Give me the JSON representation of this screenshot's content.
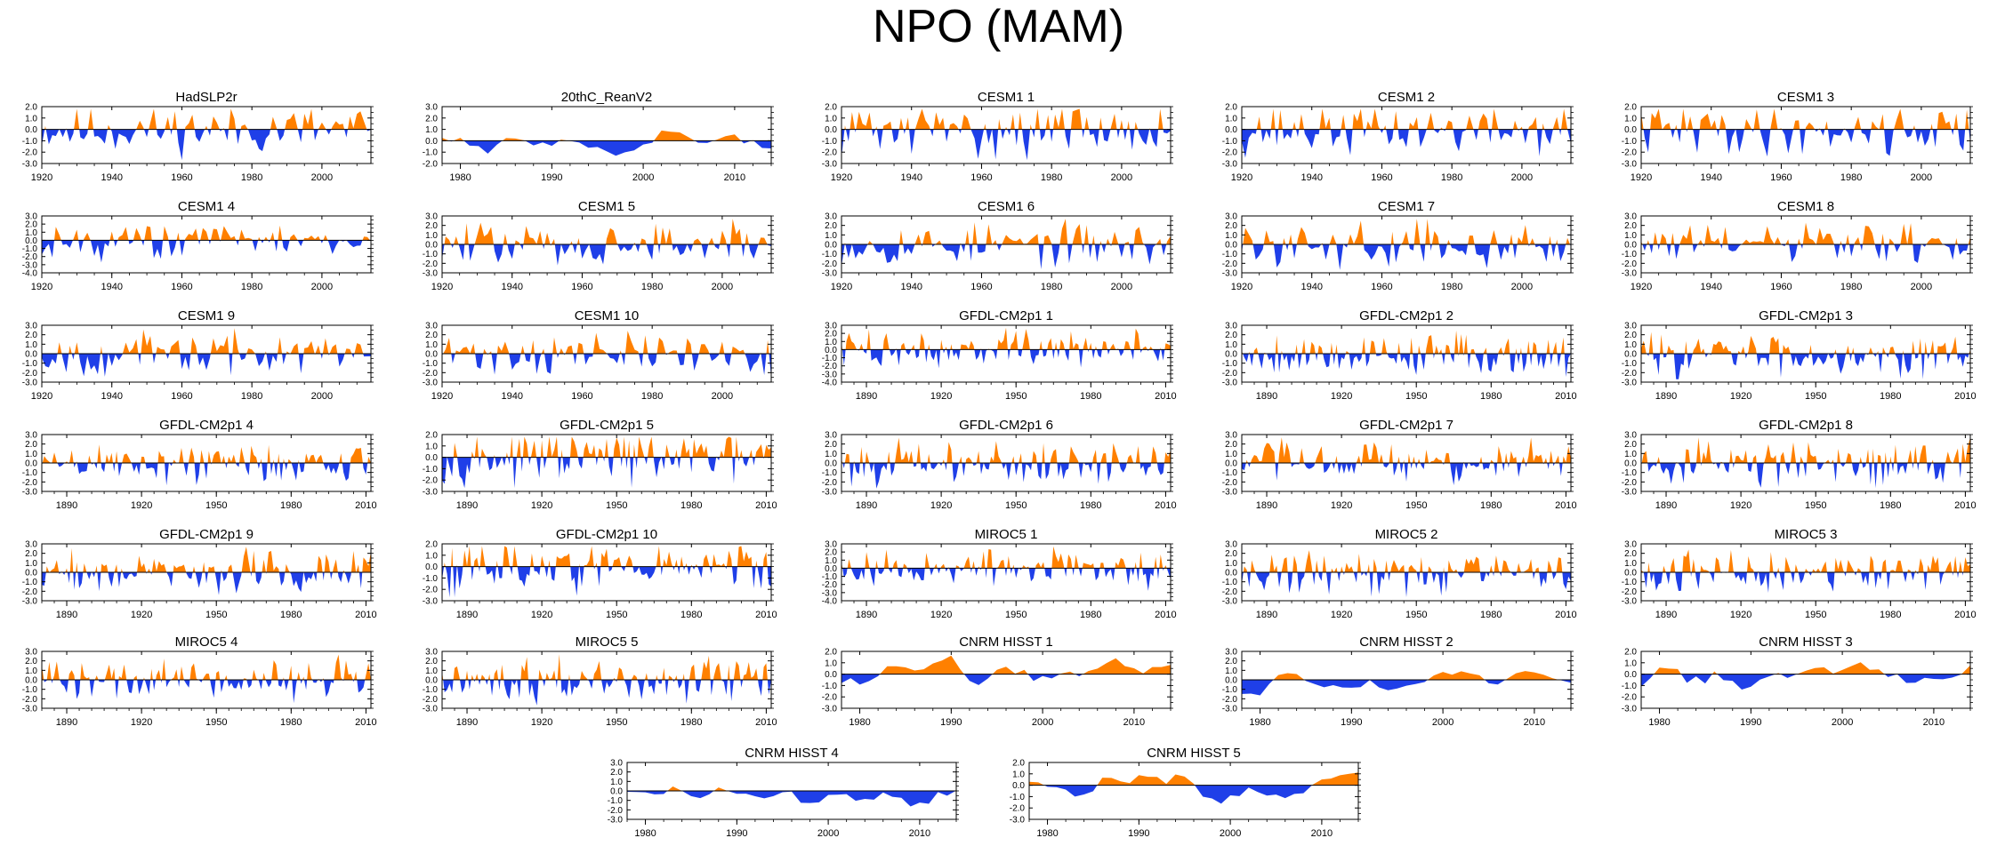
{
  "title": "NPO (MAM)",
  "colors": {
    "positive": "#ff8000",
    "negative": "#1f3fe8",
    "axis": "#000000",
    "zero": "#000000"
  },
  "chart_data": [
    {
      "type": "area",
      "title": "HadSLP2r",
      "xlim": [
        1920,
        2014
      ],
      "ylim": [
        -3,
        2
      ],
      "xticks": [
        1920,
        1940,
        1960,
        1980,
        2000
      ],
      "yticks": [
        -3,
        -2,
        -1,
        0,
        1,
        2
      ],
      "seed": 11,
      "smooth": 1
    },
    {
      "type": "area",
      "title": "20thC_ReanV2",
      "xlim": [
        1978,
        2014
      ],
      "ylim": [
        -2,
        3
      ],
      "xticks": [
        1980,
        1990,
        2000,
        2010
      ],
      "yticks": [
        -2,
        -1,
        0,
        1,
        2,
        3
      ],
      "seed": 23,
      "smooth": 3
    },
    {
      "type": "area",
      "title": "CESM1 1",
      "xlim": [
        1920,
        2014
      ],
      "ylim": [
        -3,
        2
      ],
      "xticks": [
        1920,
        1940,
        1960,
        1980,
        2000
      ],
      "yticks": [
        -3,
        -2,
        -1,
        0,
        1,
        2
      ],
      "seed": 31,
      "smooth": 1
    },
    {
      "type": "area",
      "title": "CESM1 2",
      "xlim": [
        1920,
        2014
      ],
      "ylim": [
        -3,
        2
      ],
      "xticks": [
        1920,
        1940,
        1960,
        1980,
        2000
      ],
      "yticks": [
        -3,
        -2,
        -1,
        0,
        1,
        2
      ],
      "seed": 37,
      "smooth": 1
    },
    {
      "type": "area",
      "title": "CESM1 3",
      "xlim": [
        1920,
        2014
      ],
      "ylim": [
        -3,
        2
      ],
      "xticks": [
        1920,
        1940,
        1960,
        1980,
        2000
      ],
      "yticks": [
        -3,
        -2,
        -1,
        0,
        1,
        2
      ],
      "seed": 41,
      "smooth": 1
    },
    {
      "type": "area",
      "title": "CESM1 4",
      "xlim": [
        1920,
        2014
      ],
      "ylim": [
        -4,
        3
      ],
      "xticks": [
        1920,
        1940,
        1960,
        1980,
        2000
      ],
      "yticks": [
        -4,
        -3,
        -2,
        -1,
        0,
        1,
        2,
        3
      ],
      "seed": 43,
      "smooth": 1
    },
    {
      "type": "area",
      "title": "CESM1 5",
      "xlim": [
        1920,
        2014
      ],
      "ylim": [
        -3,
        3
      ],
      "xticks": [
        1920,
        1940,
        1960,
        1980,
        2000
      ],
      "yticks": [
        -3,
        -2,
        -1,
        0,
        1,
        2,
        3
      ],
      "seed": 47,
      "smooth": 1
    },
    {
      "type": "area",
      "title": "CESM1 6",
      "xlim": [
        1920,
        2014
      ],
      "ylim": [
        -3,
        3
      ],
      "xticks": [
        1920,
        1940,
        1960,
        1980,
        2000
      ],
      "yticks": [
        -3,
        -2,
        -1,
        0,
        1,
        2,
        3
      ],
      "seed": 53,
      "smooth": 1
    },
    {
      "type": "area",
      "title": "CESM1 7",
      "xlim": [
        1920,
        2014
      ],
      "ylim": [
        -3,
        3
      ],
      "xticks": [
        1920,
        1940,
        1960,
        1980,
        2000
      ],
      "yticks": [
        -3,
        -2,
        -1,
        0,
        1,
        2,
        3
      ],
      "seed": 59,
      "smooth": 1
    },
    {
      "type": "area",
      "title": "CESM1 8",
      "xlim": [
        1920,
        2014
      ],
      "ylim": [
        -3,
        3
      ],
      "xticks": [
        1920,
        1940,
        1960,
        1980,
        2000
      ],
      "yticks": [
        -3,
        -2,
        -1,
        0,
        1,
        2,
        3
      ],
      "seed": 61,
      "smooth": 1
    },
    {
      "type": "area",
      "title": "CESM1 9",
      "xlim": [
        1920,
        2014
      ],
      "ylim": [
        -3,
        3
      ],
      "xticks": [
        1920,
        1940,
        1960,
        1980,
        2000
      ],
      "yticks": [
        -3,
        -2,
        -1,
        0,
        1,
        2,
        3
      ],
      "seed": 67,
      "smooth": 1
    },
    {
      "type": "area",
      "title": "CESM1 10",
      "xlim": [
        1920,
        2014
      ],
      "ylim": [
        -3,
        3
      ],
      "xticks": [
        1920,
        1940,
        1960,
        1980,
        2000
      ],
      "yticks": [
        -3,
        -2,
        -1,
        0,
        1,
        2,
        3
      ],
      "seed": 71,
      "smooth": 1
    },
    {
      "type": "area",
      "title": "GFDL-CM2p1 1",
      "xlim": [
        1880,
        2012
      ],
      "ylim": [
        -4,
        3
      ],
      "xticks": [
        1890,
        1920,
        1950,
        1980,
        2010
      ],
      "yticks": [
        -4,
        -3,
        -2,
        -1,
        0,
        1,
        2,
        3
      ],
      "seed": 73,
      "smooth": 1
    },
    {
      "type": "area",
      "title": "GFDL-CM2p1 2",
      "xlim": [
        1880,
        2012
      ],
      "ylim": [
        -3,
        3
      ],
      "xticks": [
        1890,
        1920,
        1950,
        1980,
        2010
      ],
      "yticks": [
        -3,
        -2,
        -1,
        0,
        1,
        2,
        3
      ],
      "seed": 79,
      "smooth": 1
    },
    {
      "type": "area",
      "title": "GFDL-CM2p1 3",
      "xlim": [
        1880,
        2012
      ],
      "ylim": [
        -3,
        3
      ],
      "xticks": [
        1890,
        1920,
        1950,
        1980,
        2010
      ],
      "yticks": [
        -3,
        -2,
        -1,
        0,
        1,
        2,
        3
      ],
      "seed": 83,
      "smooth": 1
    },
    {
      "type": "area",
      "title": "GFDL-CM2p1 4",
      "xlim": [
        1880,
        2012
      ],
      "ylim": [
        -3,
        3
      ],
      "xticks": [
        1890,
        1920,
        1950,
        1980,
        2010
      ],
      "yticks": [
        -3,
        -2,
        -1,
        0,
        1,
        2,
        3
      ],
      "seed": 89,
      "smooth": 1
    },
    {
      "type": "area",
      "title": "GFDL-CM2p1 5",
      "xlim": [
        1880,
        2012
      ],
      "ylim": [
        -3,
        2
      ],
      "xticks": [
        1890,
        1920,
        1950,
        1980,
        2010
      ],
      "yticks": [
        -3,
        -2,
        -1,
        0,
        1,
        2
      ],
      "seed": 97,
      "smooth": 1
    },
    {
      "type": "area",
      "title": "GFDL-CM2p1 6",
      "xlim": [
        1880,
        2012
      ],
      "ylim": [
        -3,
        3
      ],
      "xticks": [
        1890,
        1920,
        1950,
        1980,
        2010
      ],
      "yticks": [
        -3,
        -2,
        -1,
        0,
        1,
        2,
        3
      ],
      "seed": 101,
      "smooth": 1
    },
    {
      "type": "area",
      "title": "GFDL-CM2p1 7",
      "xlim": [
        1880,
        2012
      ],
      "ylim": [
        -3,
        3
      ],
      "xticks": [
        1890,
        1920,
        1950,
        1980,
        2010
      ],
      "yticks": [
        -3,
        -2,
        -1,
        0,
        1,
        2,
        3
      ],
      "seed": 103,
      "smooth": 1
    },
    {
      "type": "area",
      "title": "GFDL-CM2p1 8",
      "xlim": [
        1880,
        2012
      ],
      "ylim": [
        -3,
        3
      ],
      "xticks": [
        1890,
        1920,
        1950,
        1980,
        2010
      ],
      "yticks": [
        -3,
        -2,
        -1,
        0,
        1,
        2,
        3
      ],
      "seed": 107,
      "smooth": 1
    },
    {
      "type": "area",
      "title": "GFDL-CM2p1 9",
      "xlim": [
        1880,
        2012
      ],
      "ylim": [
        -3,
        3
      ],
      "xticks": [
        1890,
        1920,
        1950,
        1980,
        2010
      ],
      "yticks": [
        -3,
        -2,
        -1,
        0,
        1,
        2,
        3
      ],
      "seed": 109,
      "smooth": 1
    },
    {
      "type": "area",
      "title": "GFDL-CM2p1 10",
      "xlim": [
        1880,
        2012
      ],
      "ylim": [
        -3,
        2
      ],
      "xticks": [
        1890,
        1920,
        1950,
        1980,
        2010
      ],
      "yticks": [
        -3,
        -2,
        -1,
        0,
        1,
        2
      ],
      "seed": 113,
      "smooth": 1
    },
    {
      "type": "area",
      "title": "MIROC5 1",
      "xlim": [
        1880,
        2012
      ],
      "ylim": [
        -4,
        3
      ],
      "xticks": [
        1890,
        1920,
        1950,
        1980,
        2010
      ],
      "yticks": [
        -4,
        -3,
        -2,
        -1,
        0,
        1,
        2,
        3
      ],
      "seed": 127,
      "smooth": 1
    },
    {
      "type": "area",
      "title": "MIROC5 2",
      "xlim": [
        1880,
        2012
      ],
      "ylim": [
        -3,
        3
      ],
      "xticks": [
        1890,
        1920,
        1950,
        1980,
        2010
      ],
      "yticks": [
        -3,
        -2,
        -1,
        0,
        1,
        2,
        3
      ],
      "seed": 131,
      "smooth": 1
    },
    {
      "type": "area",
      "title": "MIROC5 3",
      "xlim": [
        1880,
        2012
      ],
      "ylim": [
        -3,
        3
      ],
      "xticks": [
        1890,
        1920,
        1950,
        1980,
        2010
      ],
      "yticks": [
        -3,
        -2,
        -1,
        0,
        1,
        2,
        3
      ],
      "seed": 137,
      "smooth": 1
    },
    {
      "type": "area",
      "title": "MIROC5 4",
      "xlim": [
        1880,
        2012
      ],
      "ylim": [
        -3,
        3
      ],
      "xticks": [
        1890,
        1920,
        1950,
        1980,
        2010
      ],
      "yticks": [
        -3,
        -2,
        -1,
        0,
        1,
        2,
        3
      ],
      "seed": 139,
      "smooth": 1
    },
    {
      "type": "area",
      "title": "MIROC5 5",
      "xlim": [
        1880,
        2012
      ],
      "ylim": [
        -3,
        3
      ],
      "xticks": [
        1890,
        1920,
        1950,
        1980,
        2010
      ],
      "yticks": [
        -3,
        -2,
        -1,
        0,
        1,
        2,
        3
      ],
      "seed": 149,
      "smooth": 1
    },
    {
      "type": "area",
      "title": "CNRM HISST 1",
      "xlim": [
        1978,
        2014
      ],
      "ylim": [
        -3,
        2
      ],
      "xticks": [
        1980,
        1990,
        2000,
        2010
      ],
      "yticks": [
        -3,
        -2,
        -1,
        0,
        1,
        2
      ],
      "seed": 151,
      "smooth": 3
    },
    {
      "type": "area",
      "title": "CNRM HISST 2",
      "xlim": [
        1978,
        2014
      ],
      "ylim": [
        -3,
        3
      ],
      "xticks": [
        1980,
        1990,
        2000,
        2010
      ],
      "yticks": [
        -3,
        -2,
        -1,
        0,
        1,
        2,
        3
      ],
      "seed": 157,
      "smooth": 3
    },
    {
      "type": "area",
      "title": "CNRM HISST 3",
      "xlim": [
        1978,
        2014
      ],
      "ylim": [
        -3,
        2
      ],
      "xticks": [
        1980,
        1990,
        2000,
        2010
      ],
      "yticks": [
        -3,
        -2,
        -1,
        0,
        1,
        2
      ],
      "seed": 163,
      "smooth": 3
    },
    {
      "type": "area",
      "title": "CNRM HISST 4",
      "xlim": [
        1978,
        2014
      ],
      "ylim": [
        -3,
        3
      ],
      "xticks": [
        1980,
        1990,
        2000,
        2010
      ],
      "yticks": [
        -3,
        -2,
        -1,
        0,
        1,
        2,
        3
      ],
      "seed": 167,
      "smooth": 3
    },
    {
      "type": "area",
      "title": "CNRM HISST 5",
      "xlim": [
        1978,
        2014
      ],
      "ylim": [
        -3,
        2
      ],
      "xticks": [
        1980,
        1990,
        2000,
        2010
      ],
      "yticks": [
        -3,
        -2,
        -1,
        0,
        1,
        2
      ],
      "seed": 173,
      "smooth": 3
    }
  ]
}
